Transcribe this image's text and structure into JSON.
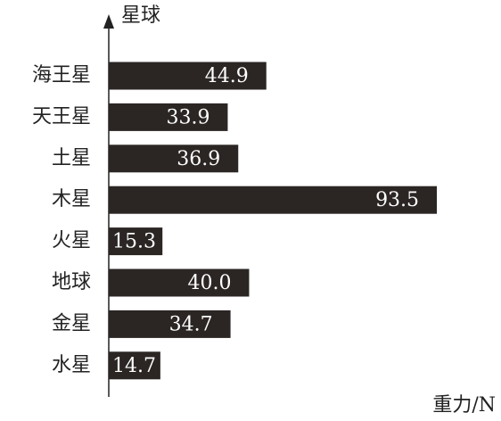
{
  "chart_data": {
    "type": "barh",
    "y_label": "星球",
    "x_label": "重力/N",
    "categories": [
      "海王星",
      "天王星",
      "土星",
      "木星",
      "火星",
      "地球",
      "金星",
      "水星"
    ],
    "values": [
      44.9,
      33.9,
      36.9,
      93.5,
      15.3,
      40.0,
      34.7,
      14.7
    ],
    "value_labels": [
      "44.9",
      "33.9",
      "36.9",
      "93.5",
      "15.3",
      "40.0",
      "34.7",
      "14.7"
    ],
    "color": "#2b2624",
    "xlim": [
      0,
      110
    ]
  }
}
